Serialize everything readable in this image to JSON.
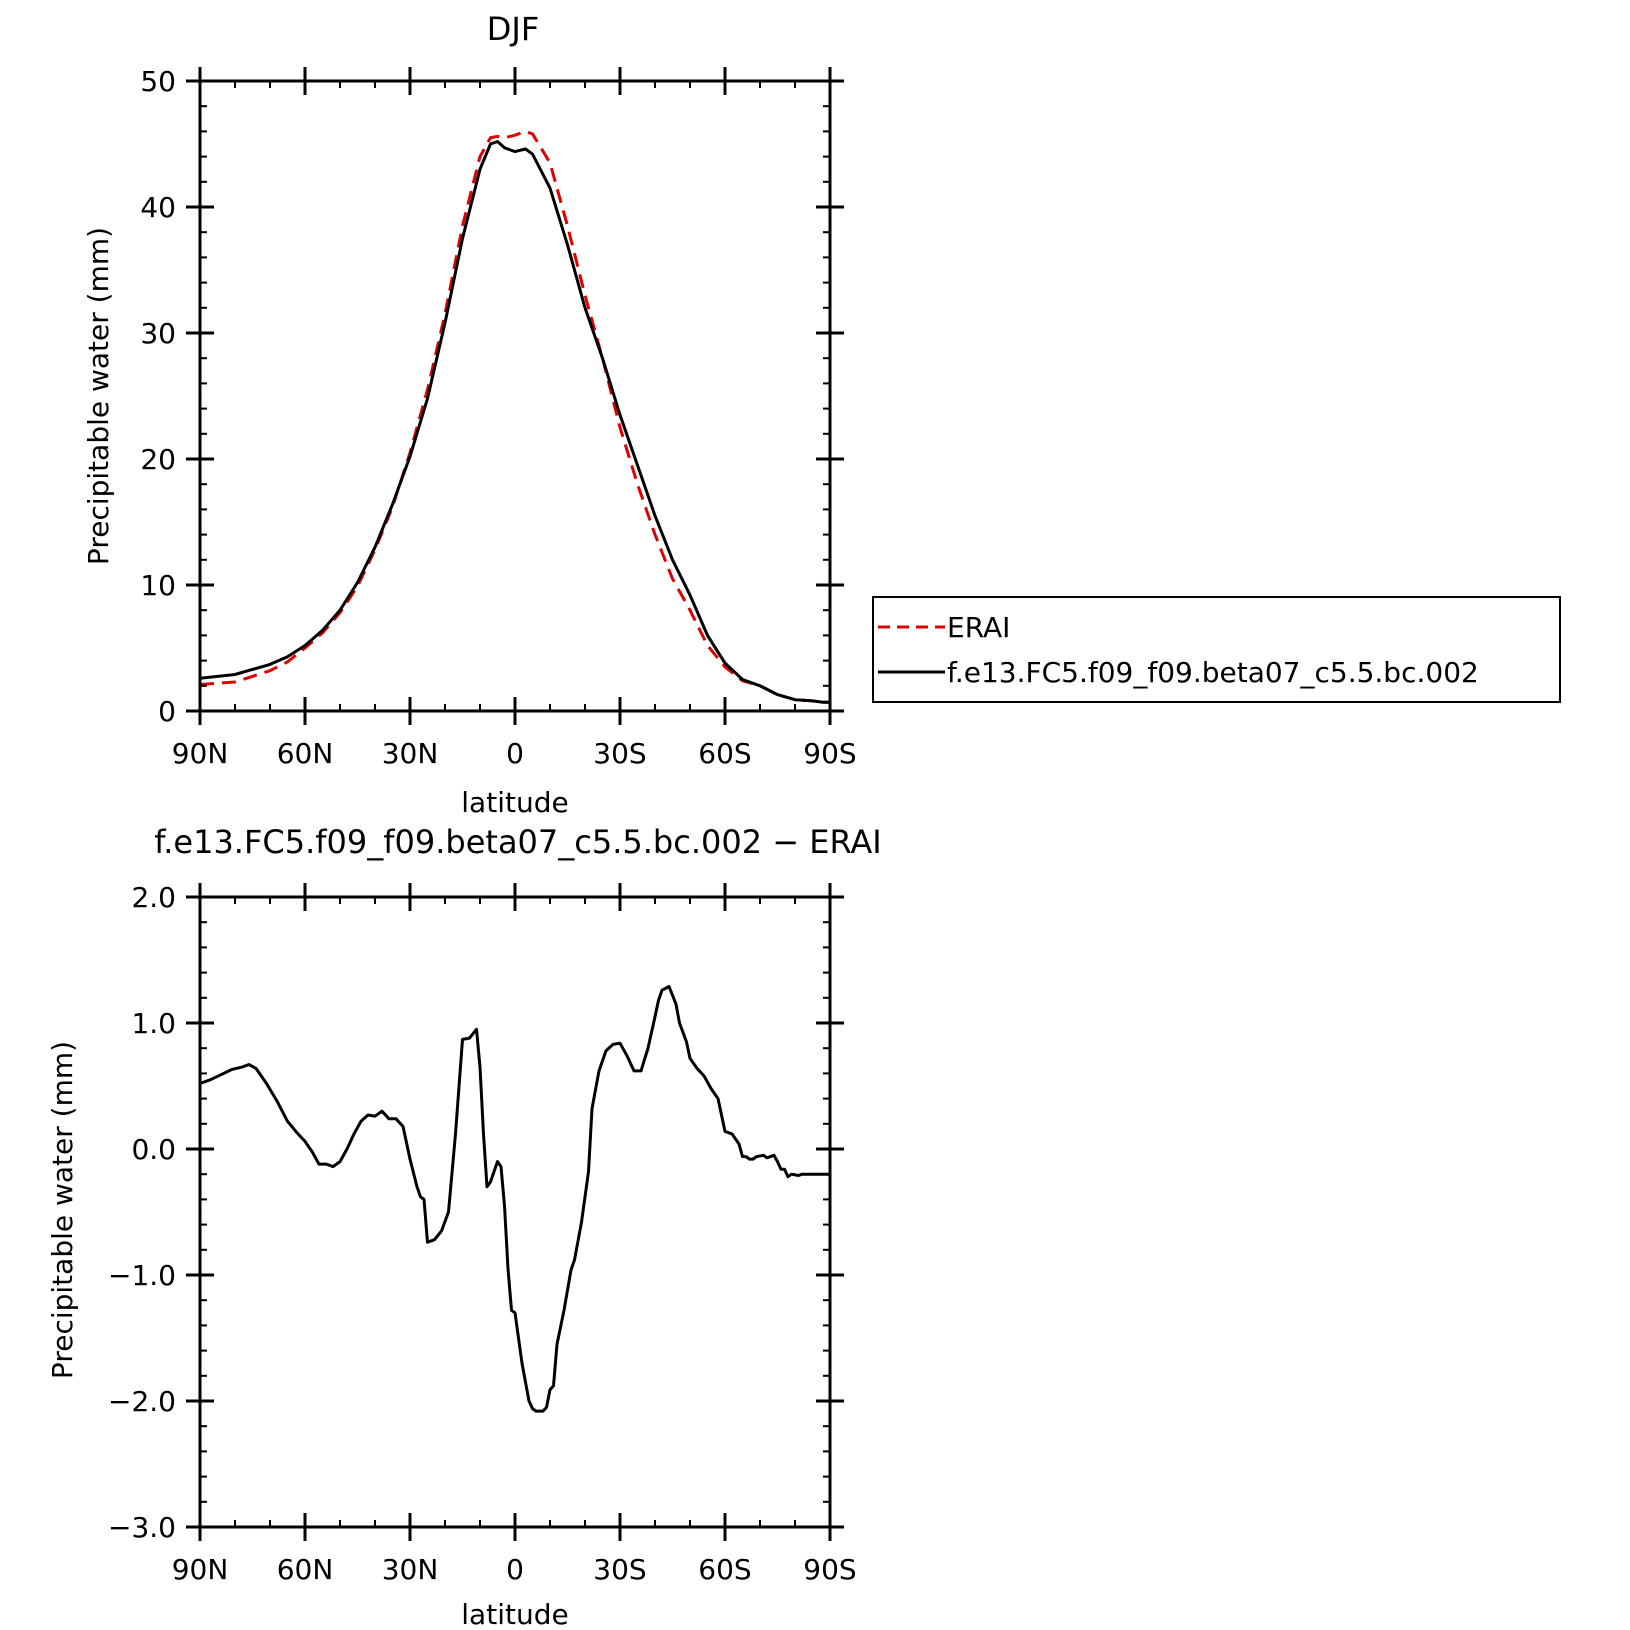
{
  "chart_data": [
    {
      "type": "line",
      "title": "DJF",
      "xlabel": "latitude",
      "ylabel": "Precipitable water (mm)",
      "xlim": [
        90,
        -90
      ],
      "ylim": [
        0,
        50
      ],
      "x_ticks": [
        90,
        60,
        30,
        0,
        -30,
        -60,
        -90
      ],
      "x_tick_labels": [
        "90N",
        "60N",
        "30N",
        "0",
        "30S",
        "60S",
        "90S"
      ],
      "y_ticks": [
        0,
        10,
        20,
        30,
        40,
        50
      ],
      "y_tick_labels": [
        "0",
        "10",
        "20",
        "30",
        "40",
        "50"
      ],
      "grid": false,
      "legend": "right",
      "series": [
        {
          "name": "ERAI",
          "color": "#e00000",
          "style": "dashed",
          "x": [
            90,
            80,
            70,
            65,
            60,
            55,
            50,
            45,
            40,
            35,
            30,
            25,
            20,
            15,
            10,
            7,
            5,
            3,
            0,
            -3,
            -5,
            -10,
            -15,
            -20,
            -25,
            -30,
            -35,
            -40,
            -45,
            -50,
            -55,
            -60,
            -65,
            -70,
            -75,
            -80,
            -85,
            -88,
            -90
          ],
          "y": [
            2.1,
            2.3,
            3.2,
            3.9,
            5.0,
            6.2,
            7.8,
            9.9,
            12.8,
            16.2,
            20.5,
            25.5,
            31.5,
            38.5,
            44.0,
            45.5,
            45.6,
            45.5,
            45.7,
            46.0,
            45.8,
            43.5,
            38.5,
            33.0,
            28.0,
            22.5,
            18.0,
            14.0,
            10.5,
            8.0,
            5.2,
            3.5,
            2.4,
            2.0,
            1.3,
            0.9,
            0.8,
            0.7,
            0.7
          ]
        },
        {
          "name": "f.e13.FC5.f09_f09.beta07_c5.5.bc.002",
          "color": "#000000",
          "style": "solid",
          "x": [
            90,
            80,
            70,
            65,
            60,
            55,
            50,
            45,
            40,
            35,
            30,
            25,
            20,
            15,
            10,
            7,
            5,
            3,
            0,
            -3,
            -5,
            -10,
            -15,
            -20,
            -25,
            -30,
            -35,
            -40,
            -45,
            -50,
            -55,
            -60,
            -65,
            -70,
            -75,
            -80,
            -85,
            -88,
            -90
          ],
          "y": [
            2.6,
            2.9,
            3.7,
            4.3,
            5.2,
            6.4,
            8.0,
            10.2,
            13.0,
            16.4,
            20.2,
            24.8,
            30.8,
            37.5,
            43.0,
            45.0,
            45.2,
            44.7,
            44.4,
            44.6,
            44.2,
            41.5,
            37.0,
            32.0,
            28.0,
            23.5,
            19.5,
            15.5,
            12.0,
            9.2,
            6.0,
            3.8,
            2.5,
            2.0,
            1.3,
            0.9,
            0.8,
            0.7,
            0.7
          ]
        }
      ]
    },
    {
      "type": "line",
      "title": "f.e13.FC5.f09_f09.beta07_c5.5.bc.002 − ERAI",
      "xlabel": "latitude",
      "ylabel": "Precipitable water (mm)",
      "xlim": [
        90,
        -90
      ],
      "ylim": [
        -3.0,
        2.0
      ],
      "x_ticks": [
        90,
        60,
        30,
        0,
        -30,
        -60,
        -90
      ],
      "x_tick_labels": [
        "90N",
        "60N",
        "30N",
        "0",
        "30S",
        "60S",
        "90S"
      ],
      "y_ticks": [
        -3.0,
        -2.0,
        -1.0,
        0.0,
        1.0,
        2.0
      ],
      "y_tick_labels": [
        "−3.0",
        "−2.0",
        "−1.0",
        "0.0",
        "1.0",
        "2.0"
      ],
      "grid": false,
      "series": [
        {
          "color": "#000000",
          "style": "solid",
          "x": [
            90,
            87,
            84,
            81,
            78,
            76,
            74,
            71,
            68,
            65,
            62,
            60,
            58,
            56,
            54,
            52,
            50,
            48,
            46,
            44,
            42,
            40,
            38,
            36,
            34,
            32,
            30,
            28,
            27,
            26,
            25,
            23,
            21,
            19,
            17,
            15,
            13,
            11,
            10,
            9,
            8,
            7,
            5,
            4,
            3,
            2,
            1,
            0,
            -1,
            -2,
            -4,
            -5,
            -6,
            -8,
            -9,
            -10,
            -11,
            -12,
            -14,
            -15,
            -16,
            -17,
            -19,
            -21,
            -22,
            -24,
            -26,
            -28,
            -30,
            -32,
            -34,
            -36,
            -38,
            -40,
            -41,
            -42,
            -44,
            -46,
            -47,
            -49,
            -50,
            -52,
            -54,
            -56,
            -58,
            -60,
            -62,
            -64,
            -65,
            -66,
            -67,
            -68,
            -69,
            -71,
            -72,
            -74,
            -75,
            -76,
            -77,
            -78,
            -79,
            -81,
            -82,
            -84,
            -85,
            -86,
            -87,
            -88,
            -89,
            -90
          ],
          "y": [
            0.52,
            0.55,
            0.59,
            0.63,
            0.65,
            0.67,
            0.64,
            0.52,
            0.38,
            0.22,
            0.12,
            0.06,
            -0.02,
            -0.12,
            -0.12,
            -0.14,
            -0.1,
            0.0,
            0.12,
            0.22,
            0.27,
            0.26,
            0.3,
            0.24,
            0.24,
            0.18,
            -0.08,
            -0.3,
            -0.38,
            -0.4,
            -0.74,
            -0.72,
            -0.65,
            -0.5,
            0.12,
            0.87,
            0.88,
            0.95,
            0.65,
            0.12,
            -0.3,
            -0.26,
            -0.1,
            -0.14,
            -0.45,
            -0.95,
            -1.28,
            -1.3,
            -1.5,
            -1.7,
            -2.0,
            -2.06,
            -2.08,
            -2.08,
            -2.05,
            -1.91,
            -1.88,
            -1.55,
            -1.28,
            -1.12,
            -0.96,
            -0.88,
            -0.58,
            -0.18,
            0.32,
            0.62,
            0.78,
            0.83,
            0.84,
            0.74,
            0.62,
            0.62,
            0.8,
            1.05,
            1.18,
            1.26,
            1.29,
            1.15,
            1.0,
            0.85,
            0.72,
            0.64,
            0.58,
            0.48,
            0.4,
            0.14,
            0.12,
            0.04,
            -0.06,
            -0.06,
            -0.08,
            -0.08,
            -0.06,
            -0.05,
            -0.07,
            -0.05,
            -0.1,
            -0.16,
            -0.16,
            -0.22,
            -0.2,
            -0.21,
            -0.2,
            -0.2,
            -0.2,
            -0.2,
            -0.2,
            -0.2,
            -0.2,
            -0.2
          ]
        }
      ]
    }
  ]
}
